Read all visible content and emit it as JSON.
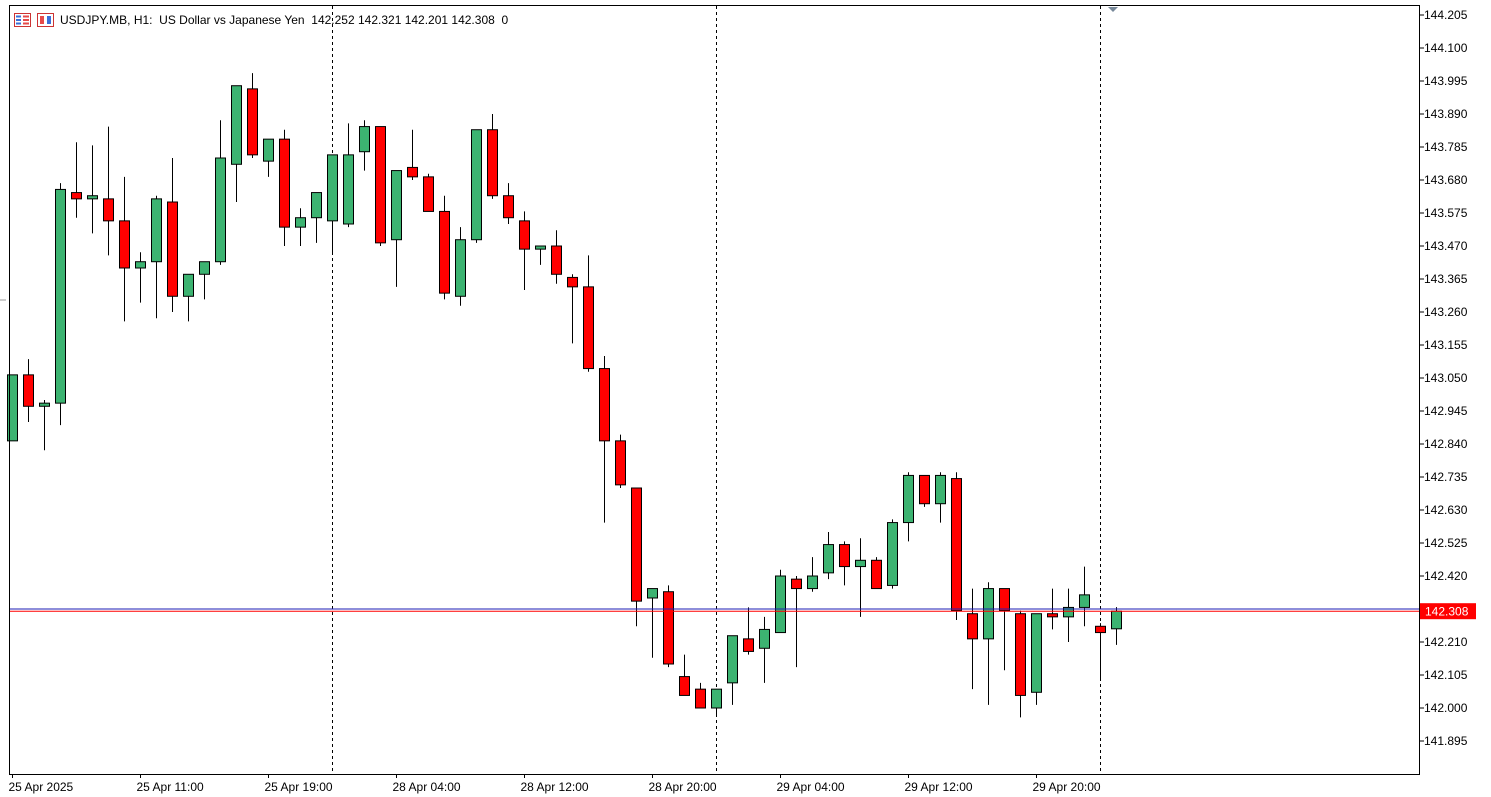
{
  "header": {
    "symbol": "USDJPY.MB",
    "timeframe": "H1:",
    "description": "US Dollar vs Japanese Yen",
    "ohlc": "142.252 142.321 142.201 142.308",
    "volume": "0"
  },
  "colors": {
    "bull": "#3cb371",
    "bear": "#ff0000",
    "wick": "#000000",
    "bid_line": "#ff0000",
    "ask_line": "#1e1eb4",
    "price_tag_bg": "#ff0000",
    "grid_separator": "#000000"
  },
  "chart_data": {
    "type": "candlestick",
    "symbol": "USDJPY.MB",
    "timeframe": "H1",
    "y_ticks": [
      "144.205",
      "144.100",
      "143.995",
      "143.890",
      "143.785",
      "143.680",
      "143.575",
      "143.470",
      "143.365",
      "143.260",
      "143.155",
      "143.050",
      "142.945",
      "142.840",
      "142.735",
      "142.630",
      "142.525",
      "142.420",
      "142.315",
      "142.210",
      "142.105",
      "142.000",
      "141.895"
    ],
    "ylim": [
      141.82,
      144.225
    ],
    "x_labels": [
      "25 Apr 2025",
      "25 Apr 11:00",
      "25 Apr 19:00",
      "28 Apr 04:00",
      "28 Apr 12:00",
      "28 Apr 20:00",
      "29 Apr 04:00",
      "29 Apr 12:00",
      "29 Apr 20:00"
    ],
    "x_label_bar_index": [
      0,
      8,
      16,
      24,
      32,
      40,
      48,
      56,
      64
    ],
    "day_separators_bar_index": [
      20,
      44,
      68
    ],
    "current_price": "142.308",
    "ask_price": 142.315,
    "candles": [
      {
        "o": 142.85,
        "h": 143.06,
        "l": 142.85,
        "c": 143.06
      },
      {
        "o": 143.06,
        "h": 143.11,
        "l": 142.91,
        "c": 142.96
      },
      {
        "o": 142.96,
        "h": 142.98,
        "l": 142.82,
        "c": 142.97
      },
      {
        "o": 142.97,
        "h": 143.67,
        "l": 142.9,
        "c": 143.65
      },
      {
        "o": 143.64,
        "h": 143.8,
        "l": 143.56,
        "c": 143.62
      },
      {
        "o": 143.62,
        "h": 143.79,
        "l": 143.51,
        "c": 143.63
      },
      {
        "o": 143.62,
        "h": 143.85,
        "l": 143.44,
        "c": 143.55
      },
      {
        "o": 143.55,
        "h": 143.69,
        "l": 143.23,
        "c": 143.4
      },
      {
        "o": 143.4,
        "h": 143.45,
        "l": 143.29,
        "c": 143.42
      },
      {
        "o": 143.42,
        "h": 143.63,
        "l": 143.24,
        "c": 143.62
      },
      {
        "o": 143.61,
        "h": 143.75,
        "l": 143.26,
        "c": 143.31
      },
      {
        "o": 143.31,
        "h": 143.38,
        "l": 143.23,
        "c": 143.38
      },
      {
        "o": 143.38,
        "h": 143.42,
        "l": 143.3,
        "c": 143.42
      },
      {
        "o": 143.42,
        "h": 143.87,
        "l": 143.41,
        "c": 143.75
      },
      {
        "o": 143.73,
        "h": 143.98,
        "l": 143.61,
        "c": 143.98
      },
      {
        "o": 143.97,
        "h": 144.02,
        "l": 143.75,
        "c": 143.76
      },
      {
        "o": 143.74,
        "h": 143.81,
        "l": 143.69,
        "c": 143.81
      },
      {
        "o": 143.81,
        "h": 143.84,
        "l": 143.47,
        "c": 143.53
      },
      {
        "o": 143.53,
        "h": 143.59,
        "l": 143.47,
        "c": 143.56
      },
      {
        "o": 143.56,
        "h": 143.64,
        "l": 143.48,
        "c": 143.64
      },
      {
        "o": 143.55,
        "h": 143.76,
        "l": 143.45,
        "c": 143.76
      },
      {
        "o": 143.54,
        "h": 143.86,
        "l": 143.53,
        "c": 143.76
      },
      {
        "o": 143.77,
        "h": 143.87,
        "l": 143.71,
        "c": 143.85
      },
      {
        "o": 143.85,
        "h": 143.85,
        "l": 143.47,
        "c": 143.48
      },
      {
        "o": 143.49,
        "h": 143.71,
        "l": 143.34,
        "c": 143.71
      },
      {
        "o": 143.72,
        "h": 143.84,
        "l": 143.68,
        "c": 143.69
      },
      {
        "o": 143.69,
        "h": 143.7,
        "l": 143.58,
        "c": 143.58
      },
      {
        "o": 143.58,
        "h": 143.63,
        "l": 143.3,
        "c": 143.32
      },
      {
        "o": 143.31,
        "h": 143.53,
        "l": 143.28,
        "c": 143.49
      },
      {
        "o": 143.49,
        "h": 143.84,
        "l": 143.48,
        "c": 143.84
      },
      {
        "o": 143.84,
        "h": 143.89,
        "l": 143.62,
        "c": 143.63
      },
      {
        "o": 143.63,
        "h": 143.67,
        "l": 143.54,
        "c": 143.56
      },
      {
        "o": 143.55,
        "h": 143.58,
        "l": 143.33,
        "c": 143.46
      },
      {
        "o": 143.46,
        "h": 143.47,
        "l": 143.41,
        "c": 143.47
      },
      {
        "o": 143.47,
        "h": 143.52,
        "l": 143.35,
        "c": 143.38
      },
      {
        "o": 143.37,
        "h": 143.38,
        "l": 143.16,
        "c": 143.34
      },
      {
        "o": 143.34,
        "h": 143.44,
        "l": 143.07,
        "c": 143.08
      },
      {
        "o": 143.08,
        "h": 143.12,
        "l": 142.59,
        "c": 142.85
      },
      {
        "o": 142.85,
        "h": 142.87,
        "l": 142.7,
        "c": 142.71
      },
      {
        "o": 142.7,
        "h": 142.7,
        "l": 142.26,
        "c": 142.34
      },
      {
        "o": 142.35,
        "h": 142.38,
        "l": 142.16,
        "c": 142.38
      },
      {
        "o": 142.37,
        "h": 142.39,
        "l": 142.13,
        "c": 142.14
      },
      {
        "o": 142.1,
        "h": 142.17,
        "l": 142.04,
        "c": 142.04
      },
      {
        "o": 142.06,
        "h": 142.08,
        "l": 142.0,
        "c": 142.0
      },
      {
        "o": 142.0,
        "h": 142.06,
        "l": 141.98,
        "c": 142.06
      },
      {
        "o": 142.08,
        "h": 142.23,
        "l": 142.01,
        "c": 142.23
      },
      {
        "o": 142.22,
        "h": 142.32,
        "l": 142.17,
        "c": 142.18
      },
      {
        "o": 142.19,
        "h": 142.29,
        "l": 142.08,
        "c": 142.25
      },
      {
        "o": 142.24,
        "h": 142.44,
        "l": 142.24,
        "c": 142.42
      },
      {
        "o": 142.41,
        "h": 142.42,
        "l": 142.13,
        "c": 142.38
      },
      {
        "o": 142.38,
        "h": 142.48,
        "l": 142.37,
        "c": 142.42
      },
      {
        "o": 142.43,
        "h": 142.56,
        "l": 142.41,
        "c": 142.52
      },
      {
        "o": 142.52,
        "h": 142.53,
        "l": 142.39,
        "c": 142.45
      },
      {
        "o": 142.45,
        "h": 142.54,
        "l": 142.29,
        "c": 142.47
      },
      {
        "o": 142.47,
        "h": 142.48,
        "l": 142.38,
        "c": 142.38
      },
      {
        "o": 142.39,
        "h": 142.6,
        "l": 142.38,
        "c": 142.59
      },
      {
        "o": 142.59,
        "h": 142.75,
        "l": 142.53,
        "c": 142.74
      },
      {
        "o": 142.74,
        "h": 142.74,
        "l": 142.64,
        "c": 142.65
      },
      {
        "o": 142.65,
        "h": 142.75,
        "l": 142.59,
        "c": 142.74
      },
      {
        "o": 142.73,
        "h": 142.75,
        "l": 142.28,
        "c": 142.31
      },
      {
        "o": 142.3,
        "h": 142.38,
        "l": 142.06,
        "c": 142.22
      },
      {
        "o": 142.22,
        "h": 142.4,
        "l": 142.01,
        "c": 142.38
      },
      {
        "o": 142.38,
        "h": 142.38,
        "l": 142.12,
        "c": 142.31
      },
      {
        "o": 142.3,
        "h": 142.31,
        "l": 141.97,
        "c": 142.04
      },
      {
        "o": 142.05,
        "h": 142.3,
        "l": 142.01,
        "c": 142.3
      },
      {
        "o": 142.3,
        "h": 142.38,
        "l": 142.25,
        "c": 142.29
      },
      {
        "o": 142.29,
        "h": 142.38,
        "l": 142.21,
        "c": 142.32
      },
      {
        "o": 142.32,
        "h": 142.45,
        "l": 142.26,
        "c": 142.36
      },
      {
        "o": 142.26,
        "h": 142.27,
        "l": 142.09,
        "c": 142.24
      },
      {
        "o": 142.252,
        "h": 142.321,
        "l": 142.201,
        "c": 142.308
      }
    ]
  }
}
